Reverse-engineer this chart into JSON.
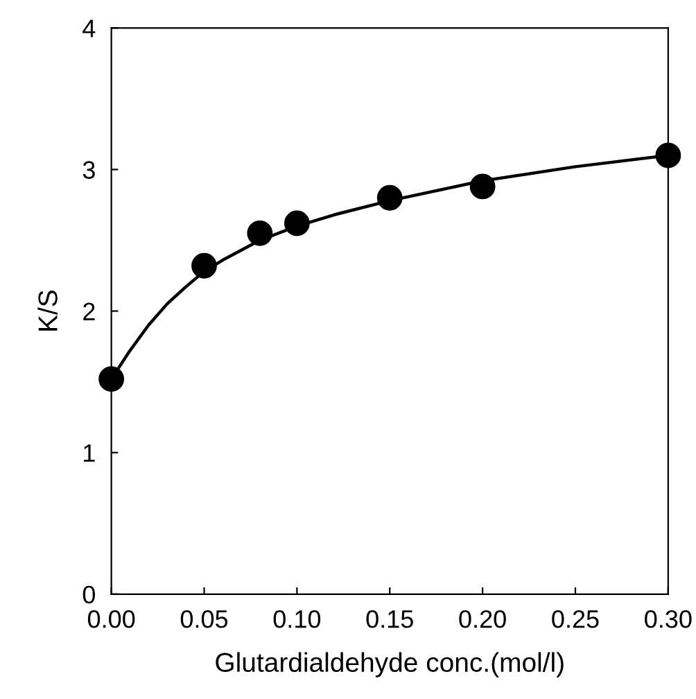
{
  "chart_data": {
    "type": "scatter",
    "xlabel": "Glutardialdehyde conc.(mol/l)",
    "ylabel": "K/S",
    "grid": false,
    "xlim": [
      0,
      0.3
    ],
    "xticks": [
      {
        "value": 0,
        "label": "0.00"
      },
      {
        "value": 0.05,
        "label": "0.05"
      },
      {
        "value": 0.1,
        "label": "0.10"
      },
      {
        "value": 0.15,
        "label": "0.15"
      },
      {
        "value": 0.2,
        "label": "0.20"
      },
      {
        "value": 0.25,
        "label": "0.25"
      },
      {
        "value": 0.3,
        "label": "0.30"
      }
    ],
    "ylim": [
      0,
      4
    ],
    "yticks": [
      0,
      1,
      2,
      3,
      4
    ],
    "series": [
      {
        "marker": "circle",
        "color": "#000000",
        "x": [
          0,
          0.05,
          0.08,
          0.1,
          0.15,
          0.2,
          0.3
        ],
        "values": [
          1.52,
          2.32,
          2.55,
          2.62,
          2.8,
          2.88,
          3.1
        ]
      },
      {
        "type": "line",
        "color": "#000000",
        "x": [
          0,
          0.01,
          0.02,
          0.03,
          0.04,
          0.05,
          0.06,
          0.08,
          0.1,
          0.12,
          0.15,
          0.2,
          0.25,
          0.3
        ],
        "values": [
          1.52,
          1.72,
          1.9,
          2.05,
          2.17,
          2.28,
          2.36,
          2.5,
          2.6,
          2.68,
          2.78,
          2.92,
          3.02,
          3.1
        ]
      }
    ]
  }
}
